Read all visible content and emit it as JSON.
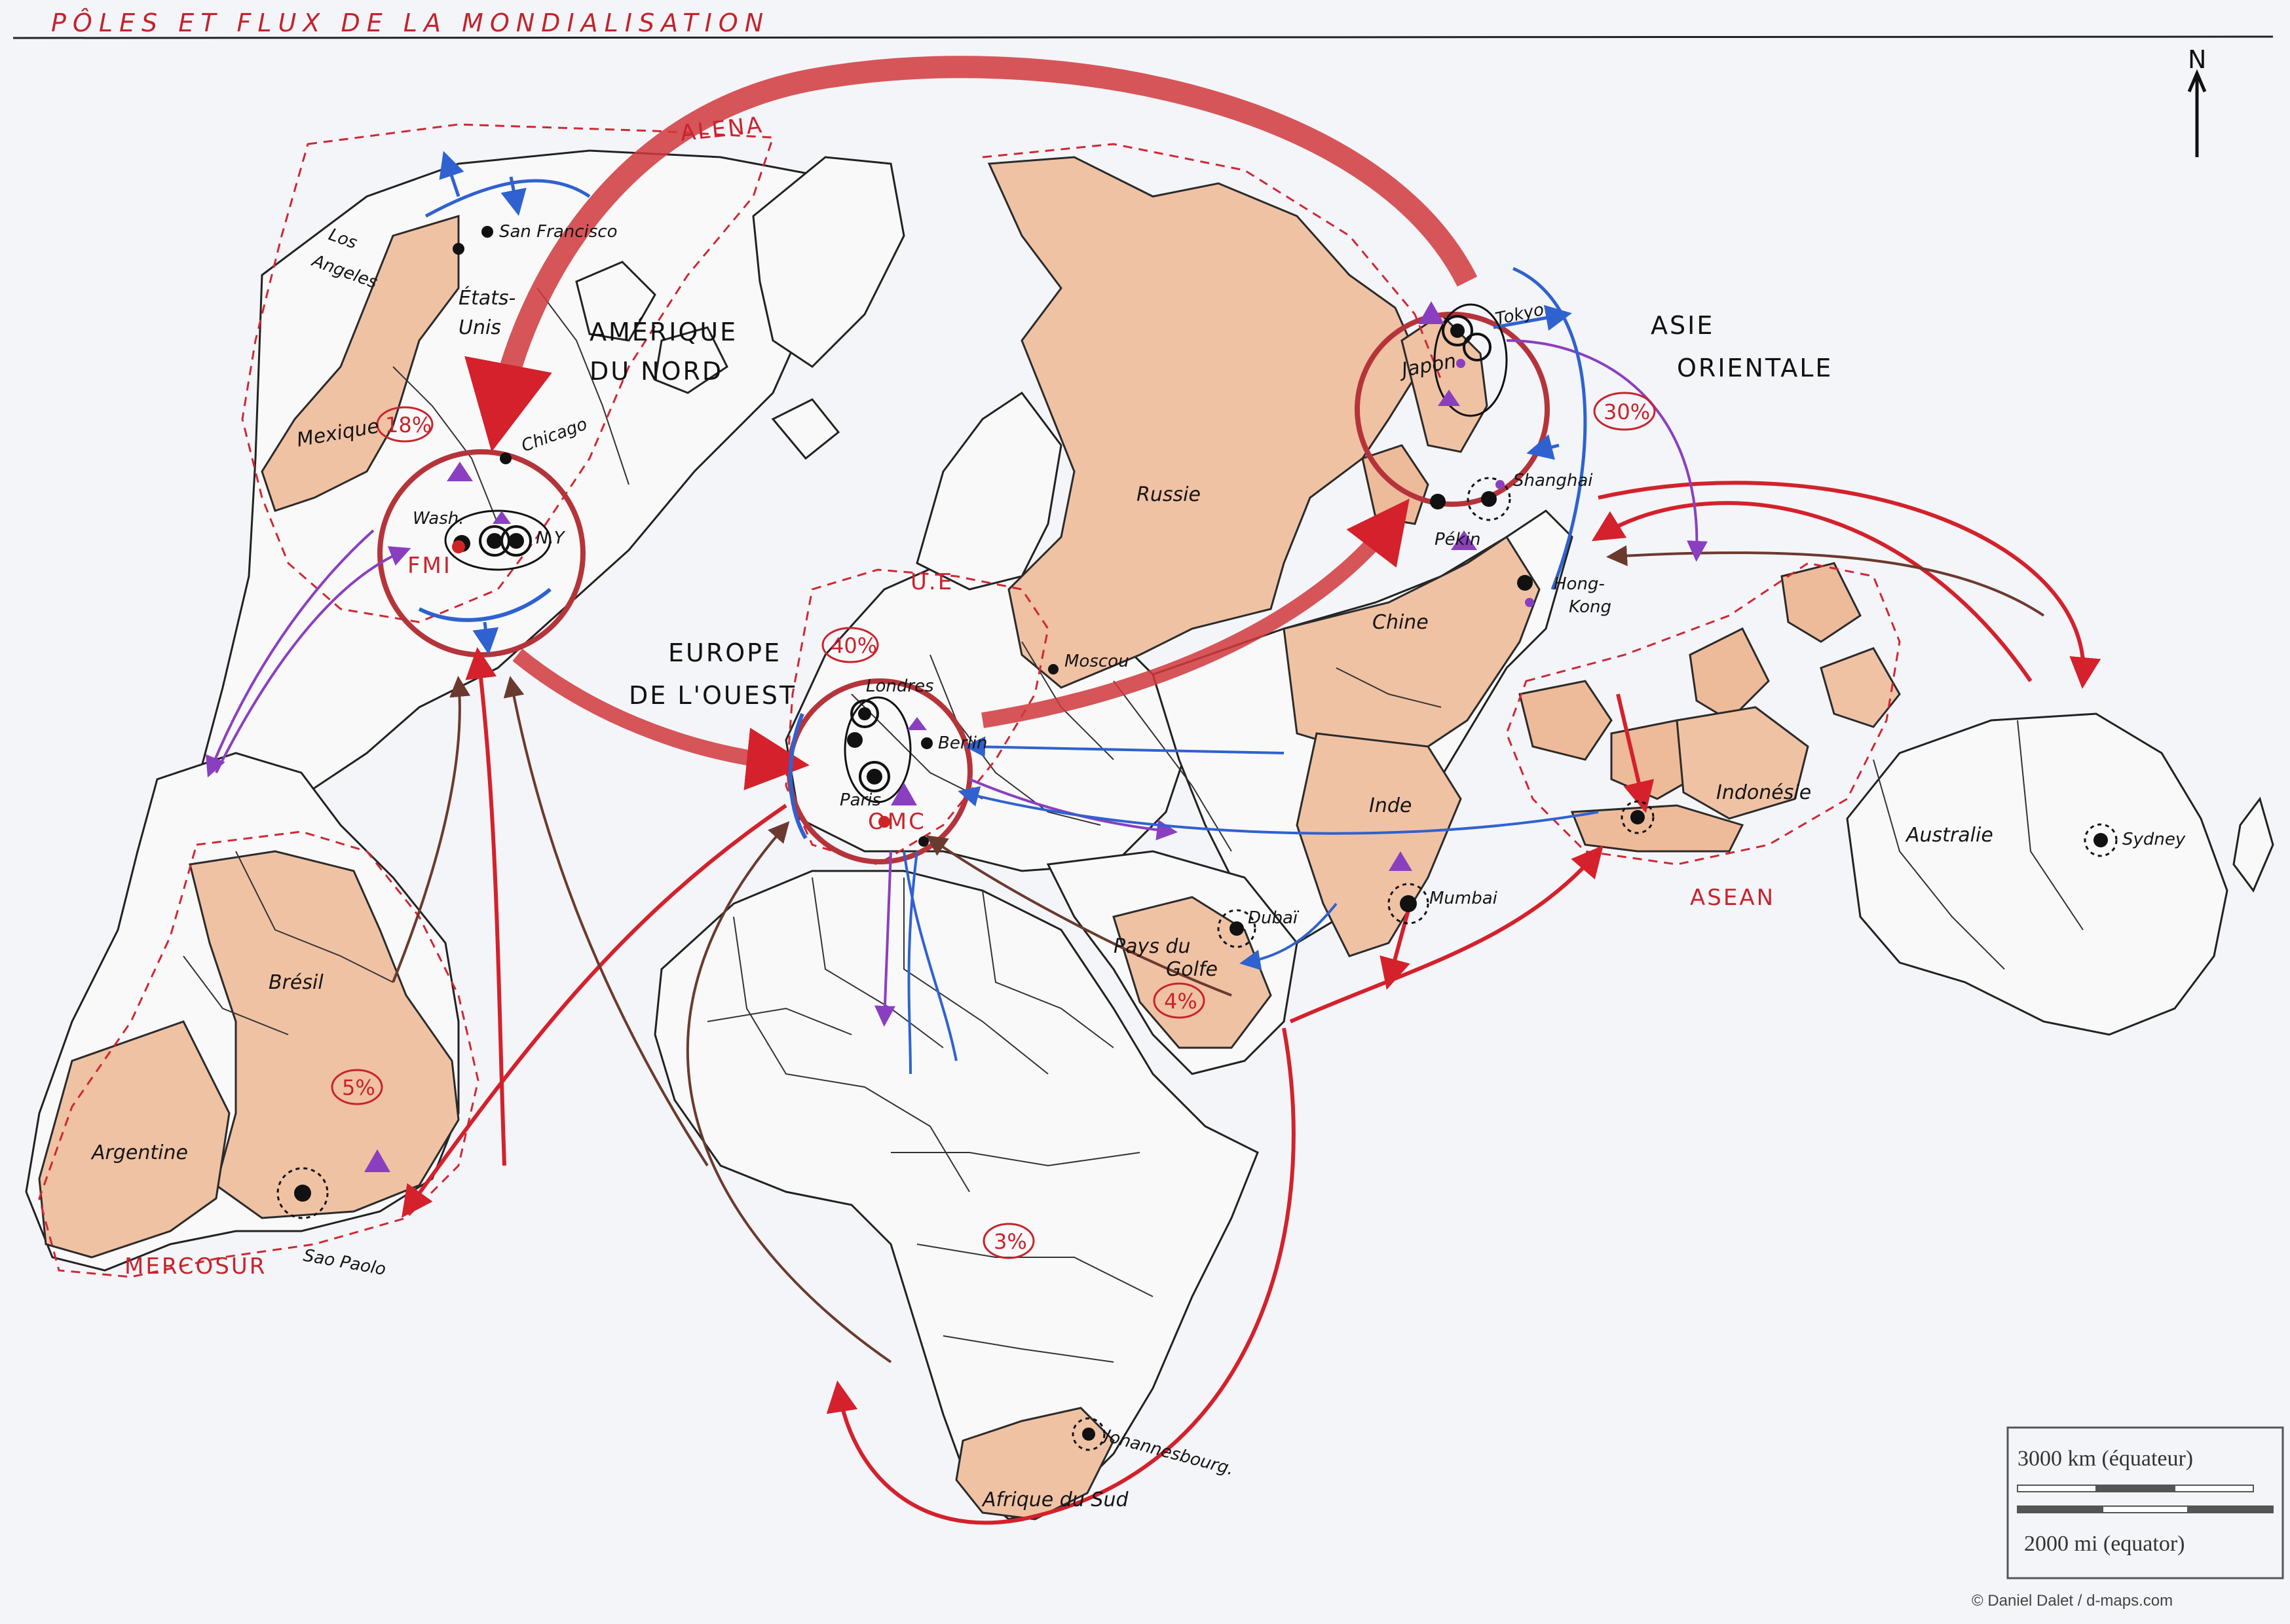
{
  "title": "PÔLES ET FLUX DE LA MONDIALISATION",
  "north": "N",
  "regions": {
    "amerique_du_nord": [
      "AMÉRIQUE",
      "DU NORD"
    ],
    "europe_ouest": [
      "EUROPE",
      "DE L'OUEST"
    ],
    "asie_orientale": [
      "ASIE",
      "ORIENTALE"
    ]
  },
  "organisations": {
    "alena": "ALENA",
    "ue": "U.E",
    "mercosur": "MERCOSUR",
    "asean": "ASEAN"
  },
  "percentages": {
    "amerique_du_nord": "18%",
    "europe": "40%",
    "asie": "30%",
    "bresil": "5%",
    "golfe": "4%",
    "afrique": "3%"
  },
  "institutions": {
    "fmi": "FMI",
    "omc": "OMC"
  },
  "countries": {
    "etats_unis": [
      "États-",
      "Unis"
    ],
    "mexique": "Mexique",
    "bresil": "Brésil",
    "argentine": "Argentine",
    "russie": "Russie",
    "chine": "Chine",
    "japon": "Japon",
    "inde": "Inde",
    "indonesie": "Indonésie",
    "australie": "Australie",
    "pays_du_golfe": [
      "Pays du",
      "Golfe"
    ],
    "afrique_du_sud": "Afrique du Sud"
  },
  "cities": {
    "los_angeles": [
      "Los",
      "Angeles"
    ],
    "san_francisco": "San Francisco",
    "chicago": "Chicago",
    "washington": "Wash.",
    "new_york": "N.Y",
    "sao_paulo": "Sao Paolo",
    "londres": "Londres",
    "paris": "Paris",
    "berlin": "Berlin",
    "moscou": "Moscou",
    "tokyo": "Tokyo",
    "shanghai": "Shanghai",
    "pekin": "Pékin",
    "hong_kong": [
      "Hong-",
      "Kong"
    ],
    "mumbai": "Mumbai",
    "dubai": "Dubaï",
    "sydney": "Sydney",
    "johannesbourg": "Johannesbourg."
  },
  "scale": {
    "km": "3000 km (équateur)",
    "mi": "2000 mi (equator)"
  },
  "credit": "© Daniel Dalet / d-maps.com",
  "colors": {
    "pole_flux": "#c8232c",
    "secondary_flux": "#6b3a2e",
    "migration": "#8a3fc0",
    "finance": "#2f62d0",
    "land_highlight": "#f0c2a4"
  }
}
